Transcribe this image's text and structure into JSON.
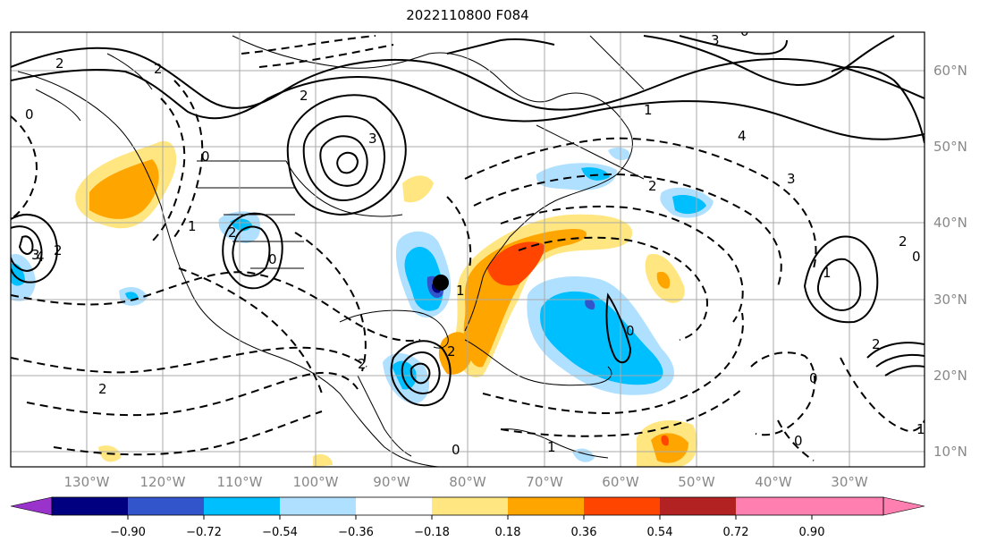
{
  "title": "2022110800 F084",
  "longitude_labels": [
    "130°W",
    "120°W",
    "110°W",
    "100°W",
    "90°W",
    "80°W",
    "70°W",
    "60°W",
    "50°W",
    "40°W",
    "30°W"
  ],
  "latitude_labels": [
    "60°N",
    "50°N",
    "40°N",
    "30°N",
    "20°N",
    "10°N"
  ],
  "colorbar": {
    "ticks": [
      "−0.90",
      "−0.72",
      "−0.54",
      "−0.36",
      "−0.18",
      "0.18",
      "0.36",
      "0.54",
      "0.72",
      "0.90"
    ],
    "colors": [
      "#9933cc",
      "#000080",
      "#3355cc",
      "#00bfff",
      "#b0e0ff",
      "#ffffff",
      "#ffe680",
      "#ffa500",
      "#ff4500",
      "#b22222",
      "#ff80b0"
    ]
  },
  "contour_labels": [
    "2",
    "0",
    "2",
    "3",
    "2",
    "3",
    "4",
    "3",
    "2",
    "2",
    "0",
    "1",
    "2",
    "0",
    "4",
    "3",
    "1",
    "2",
    "0",
    "2",
    "0",
    "1",
    "2",
    "0",
    "1",
    "0",
    "2",
    "0",
    "1",
    "2",
    "1",
    "0"
  ],
  "marker": "storm-center"
}
